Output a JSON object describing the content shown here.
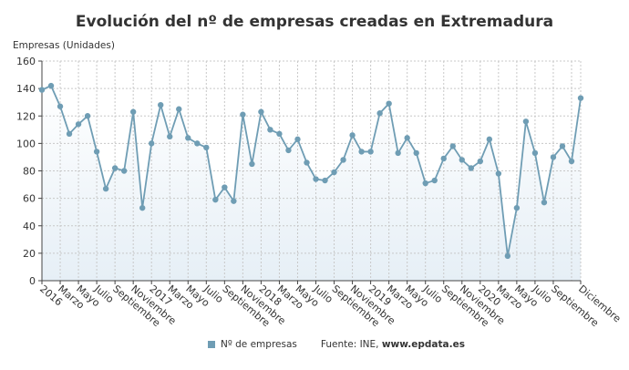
{
  "chart_data": {
    "type": "area",
    "title": "Evolución del nº de empresas creadas en Extremadura",
    "ylabel": "Empresas (Unidades)",
    "xlabel": "",
    "ylim": [
      0,
      160
    ],
    "yticks": [
      0,
      20,
      40,
      60,
      80,
      100,
      120,
      140,
      160
    ],
    "grid": true,
    "legend_position": "bottom",
    "x": [
      "2016-01",
      "2016-02",
      "2016-03",
      "2016-04",
      "2016-05",
      "2016-06",
      "2016-07",
      "2016-08",
      "2016-09",
      "2016-10",
      "2016-11",
      "2016-12",
      "2017-01",
      "2017-02",
      "2017-03",
      "2017-04",
      "2017-05",
      "2017-06",
      "2017-07",
      "2017-08",
      "2017-09",
      "2017-10",
      "2017-11",
      "2017-12",
      "2018-01",
      "2018-02",
      "2018-03",
      "2018-04",
      "2018-05",
      "2018-06",
      "2018-07",
      "2018-08",
      "2018-09",
      "2018-10",
      "2018-11",
      "2018-12",
      "2019-01",
      "2019-02",
      "2019-03",
      "2019-04",
      "2019-05",
      "2019-06",
      "2019-07",
      "2019-08",
      "2019-09",
      "2019-10",
      "2019-11",
      "2019-12",
      "2020-01",
      "2020-02",
      "2020-03",
      "2020-04",
      "2020-05",
      "2020-06",
      "2020-07",
      "2020-08",
      "2020-09",
      "2020-10",
      "2020-11",
      "2020-12"
    ],
    "xtick_labels": [
      "2016",
      "",
      "Marzo",
      "",
      "Mayo",
      "",
      "Julio",
      "",
      "Septiembre",
      "",
      "Noviembre",
      "",
      "2017",
      "",
      "Marzo",
      "",
      "Mayo",
      "",
      "Julio",
      "",
      "Septiembre",
      "",
      "Noviembre",
      "",
      "2018",
      "",
      "Marzo",
      "",
      "Mayo",
      "",
      "Julio",
      "",
      "Septiembre",
      "",
      "Noviembre",
      "",
      "2019",
      "",
      "Marzo",
      "",
      "Mayo",
      "",
      "Julio",
      "",
      "Septiembre",
      "",
      "Noviembre",
      "",
      "2020",
      "",
      "Marzo",
      "",
      "Mayo",
      "",
      "Julio",
      "",
      "Septiembre",
      "",
      "",
      "Diciembre"
    ],
    "series": [
      {
        "name": "Nº de empresas",
        "color": "#6f9db4",
        "values": [
          139,
          142,
          127,
          107,
          114,
          120,
          94,
          67,
          82,
          80,
          123,
          53,
          100,
          128,
          105,
          125,
          104,
          100,
          97,
          59,
          68,
          58,
          121,
          85,
          123,
          110,
          107,
          95,
          103,
          86,
          74,
          73,
          79,
          88,
          106,
          94,
          94,
          122,
          129,
          93,
          104,
          93,
          71,
          73,
          89,
          98,
          88,
          82,
          87,
          103,
          78,
          18,
          53,
          116,
          93,
          57,
          90,
          98,
          87,
          133
        ]
      }
    ]
  },
  "legend": {
    "label": "Nº de empresas"
  },
  "source": {
    "prefix": "Fuente: INE, ",
    "site": "www.epdata.es"
  }
}
